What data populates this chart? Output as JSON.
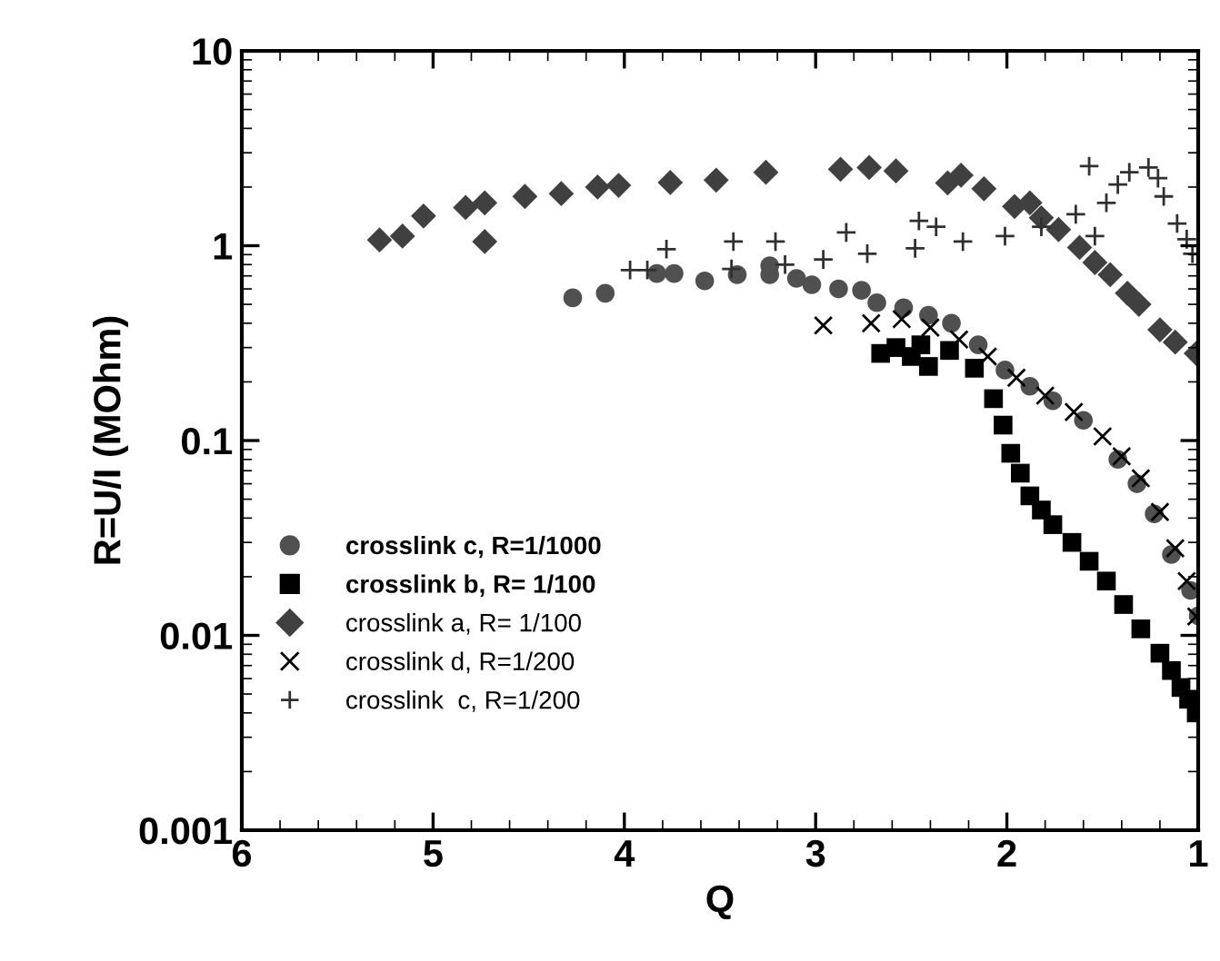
{
  "chart_data": {
    "type": "scatter",
    "xlabel": "Q",
    "ylabel": "R=U/I (MOhm)",
    "log": "y",
    "xlim": [
      6,
      1
    ],
    "xticks": [
      6,
      5,
      4,
      3,
      2,
      1
    ],
    "ylim": [
      0.001,
      10
    ],
    "yticks": [
      0.001,
      0.01,
      0.1,
      1,
      10
    ],
    "grid": false,
    "legend": "left",
    "series": [
      {
        "name": "crosslink c, R=1/1000",
        "color": "#505050",
        "marker": "circle",
        "x": [
          4.27,
          4.1,
          3.83,
          3.74,
          3.58,
          3.41,
          3.24,
          3.24,
          3.1,
          3.02,
          2.88,
          2.76,
          2.68,
          2.54,
          2.41,
          2.29,
          2.15,
          2.01,
          1.88,
          1.76,
          1.6,
          1.42,
          1.32,
          1.23,
          1.14,
          1.04,
          1.0
        ],
        "values": [
          0.54,
          0.57,
          0.72,
          0.72,
          0.66,
          0.71,
          0.79,
          0.71,
          0.68,
          0.63,
          0.6,
          0.59,
          0.51,
          0.48,
          0.44,
          0.4,
          0.31,
          0.23,
          0.19,
          0.16,
          0.127,
          0.08,
          0.06,
          0.042,
          0.026,
          0.017,
          0.0126
        ]
      },
      {
        "name": "crosslink b, R= 1/100",
        "color": "#000000",
        "marker": "square",
        "x": [
          2.66,
          2.58,
          2.5,
          2.45,
          2.41,
          2.3,
          2.17,
          2.07,
          2.02,
          1.98,
          1.93,
          1.88,
          1.82,
          1.76,
          1.66,
          1.57,
          1.48,
          1.39,
          1.3,
          1.2,
          1.14,
          1.09,
          1.05,
          1.01
        ],
        "values": [
          0.28,
          0.3,
          0.27,
          0.31,
          0.24,
          0.29,
          0.235,
          0.164,
          0.12,
          0.086,
          0.068,
          0.052,
          0.044,
          0.037,
          0.03,
          0.024,
          0.019,
          0.0144,
          0.0108,
          0.0081,
          0.0066,
          0.0054,
          0.0047,
          0.004
        ]
      },
      {
        "name": "crosslink a, R= 1/100",
        "color": "#404040",
        "marker": "diamond",
        "x": [
          5.28,
          5.16,
          5.05,
          4.83,
          4.73,
          4.73,
          4.52,
          4.33,
          4.14,
          4.03,
          3.76,
          3.52,
          3.26,
          2.87,
          2.72,
          2.58,
          2.31,
          2.24,
          2.12,
          1.96,
          1.88,
          1.82,
          1.73,
          1.62,
          1.54,
          1.46,
          1.37,
          1.31,
          1.2,
          1.12,
          1.01
        ],
        "values": [
          1.07,
          1.12,
          1.42,
          1.57,
          1.66,
          1.05,
          1.79,
          1.85,
          2.0,
          2.04,
          2.11,
          2.17,
          2.38,
          2.47,
          2.52,
          2.42,
          2.1,
          2.3,
          1.96,
          1.59,
          1.66,
          1.39,
          1.21,
          0.98,
          0.82,
          0.71,
          0.57,
          0.5,
          0.37,
          0.32,
          0.28
        ]
      },
      {
        "name": "crosslink d, R=1/200",
        "color": "#000000",
        "marker": "cross",
        "x": [
          2.96,
          2.71,
          2.55,
          2.4,
          2.25,
          2.1,
          1.95,
          1.8,
          1.65,
          1.5,
          1.4,
          1.3,
          1.2,
          1.12,
          1.06,
          1.01
        ],
        "values": [
          0.39,
          0.4,
          0.42,
          0.38,
          0.33,
          0.27,
          0.21,
          0.17,
          0.14,
          0.105,
          0.083,
          0.064,
          0.043,
          0.028,
          0.019,
          0.0125
        ]
      },
      {
        "name": "crosslink  c, R=1/200",
        "color": "#303030",
        "marker": "plus",
        "x": [
          3.97,
          3.88,
          3.78,
          3.44,
          3.43,
          3.21,
          3.16,
          2.96,
          2.84,
          2.73,
          2.48,
          2.46,
          2.37,
          2.23,
          2.01,
          1.82,
          1.64,
          1.57,
          1.54,
          1.48,
          1.42,
          1.36,
          1.26,
          1.21,
          1.18,
          1.11,
          1.06,
          1.03
        ],
        "values": [
          0.75,
          0.75,
          0.96,
          0.76,
          1.05,
          1.05,
          0.8,
          0.85,
          1.17,
          0.91,
          0.97,
          1.34,
          1.25,
          1.05,
          1.12,
          1.25,
          1.45,
          2.56,
          1.12,
          1.66,
          2.06,
          2.38,
          2.52,
          2.22,
          1.79,
          1.3,
          1.08,
          0.91
        ]
      }
    ]
  }
}
